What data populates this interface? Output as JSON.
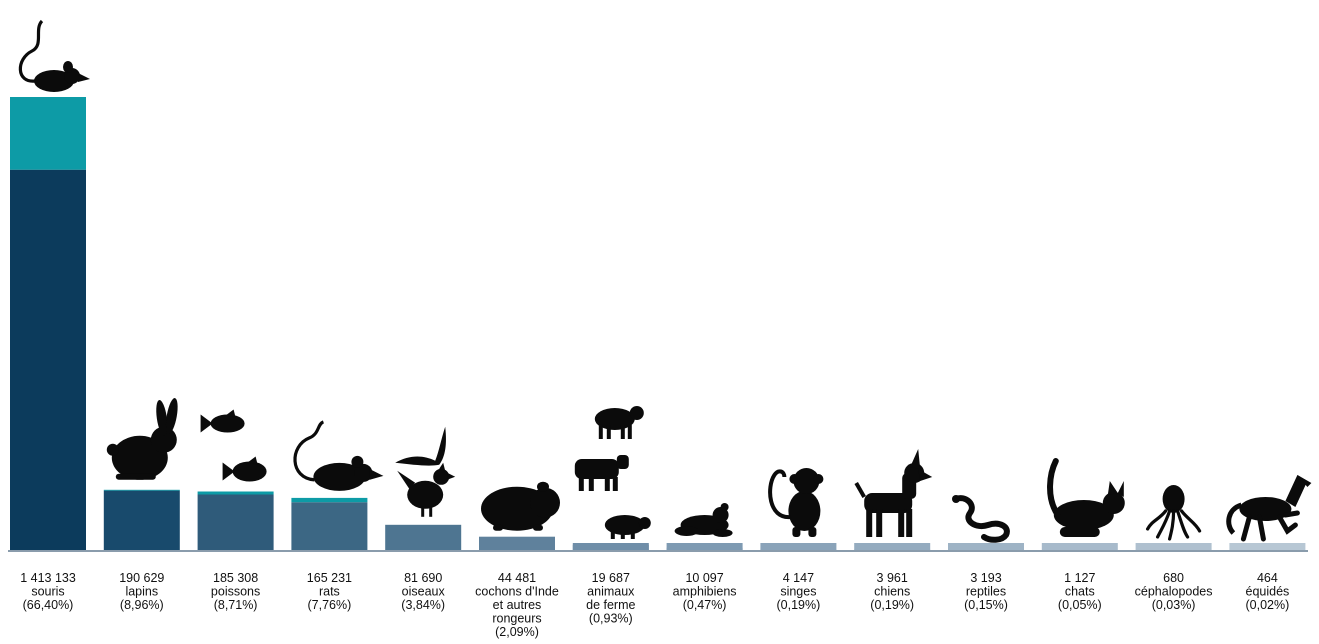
{
  "chart_data": {
    "type": "bar",
    "title": "",
    "xlabel": "",
    "ylabel": "",
    "ylim": [
      0,
      1413133
    ],
    "grid": false,
    "legend": "none",
    "categories": [
      {
        "value_text": "1 413 133",
        "name": "souris",
        "pct": "(66,40%)",
        "icon": "mouse-icon"
      },
      {
        "value_text": "190 629",
        "name": "lapins",
        "pct": "(8,96%)",
        "icon": "rabbit-icon"
      },
      {
        "value_text": "185 308",
        "name": "poissons",
        "pct": "(8,71%)",
        "icon": "fish-icon"
      },
      {
        "value_text": "165 231",
        "name": "rats",
        "pct": "(7,76%)",
        "icon": "rat-icon"
      },
      {
        "value_text": "81 690",
        "name": "oiseaux",
        "pct": "(3,84%)",
        "icon": "bird-icon"
      },
      {
        "value_text": "44 481",
        "name": "cochons d'Inde et autres rongeurs",
        "name_lines": [
          "cochons d'Inde",
          "et autres",
          "rongeurs"
        ],
        "pct": "(2,09%)",
        "icon": "guinea-pig-icon"
      },
      {
        "value_text": "19 687",
        "name": "animaux de ferme",
        "name_lines": [
          "animaux",
          "de ferme"
        ],
        "pct": "(0,93%)",
        "icon": "farm-animals-icon"
      },
      {
        "value_text": "10 097",
        "name": "amphibiens",
        "pct": "(0,47%)",
        "icon": "frog-icon"
      },
      {
        "value_text": "4 147",
        "name": "singes",
        "pct": "(0,19%)",
        "icon": "monkey-icon"
      },
      {
        "value_text": "3 961",
        "name": "chiens",
        "pct": "(0,19%)",
        "icon": "dog-icon"
      },
      {
        "value_text": "3 193",
        "name": "reptiles",
        "pct": "(0,15%)",
        "icon": "snake-icon"
      },
      {
        "value_text": "1 127",
        "name": "chats",
        "pct": "(0,05%)",
        "icon": "cat-icon"
      },
      {
        "value_text": "680",
        "name": "céphalopodes",
        "pct": "(0,03%)",
        "icon": "octopus-icon"
      },
      {
        "value_text": "464",
        "name": "équidés",
        "pct": "(0,02%)",
        "icon": "horse-icon"
      }
    ],
    "series": [
      {
        "values": [
          1187000,
          188000,
          176000,
          152000,
          81690,
          44481,
          19687,
          10097,
          4147,
          3961,
          3193,
          1127,
          680,
          464
        ]
      },
      {
        "values": [
          226133,
          2629,
          9308,
          13231,
          0,
          0,
          0,
          0,
          0,
          0,
          0,
          0,
          0,
          0
        ]
      }
    ],
    "colors": {
      "bars": [
        "#0c3b5c",
        "#184a6c",
        "#2f5b7a",
        "#3c6784",
        "#4e7591",
        "#5f819c",
        "#6f8ea8",
        "#7e9ab2",
        "#8aa3b9",
        "#94abbf",
        "#9eb3c5",
        "#a7bacb",
        "#afc0cf",
        "#b7c7d4"
      ],
      "top_segment": "#0d9ba6",
      "icon": "#0b0b0b",
      "axis": "#8a9cac"
    }
  }
}
